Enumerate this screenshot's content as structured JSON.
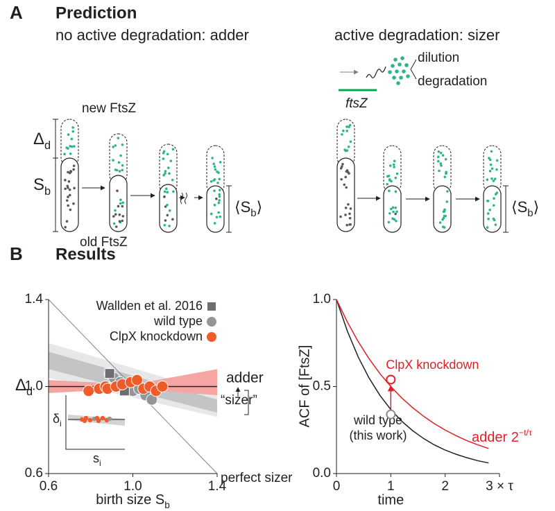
{
  "panel_a": {
    "letter": "A",
    "title": "Prediction",
    "left_heading": "no active degradation: adder",
    "right_heading": "active degradation: sizer",
    "new_label": "new FtsZ",
    "old_label": "old FtsZ",
    "delta_label": {
      "main": "Δ",
      "sub": "d"
    },
    "birth_label": {
      "main": "S",
      "sub": "b"
    },
    "mean_left": {
      "open": "⟨S",
      "sub": "b",
      "close": "⟩"
    },
    "mean_right": {
      "open": "⟨S",
      "sub": "b",
      "close": "⟩"
    },
    "gene": "ftsZ",
    "fates": [
      "dilution",
      "degradation"
    ]
  },
  "panel_b": {
    "letter": "B",
    "title": "Results"
  },
  "chart_data": [
    {
      "type": "scatter",
      "ylabel": {
        "main": "Δ",
        "sub": "d"
      },
      "xlabel": {
        "main": "birth size S",
        "sub": "b"
      },
      "xlim": [
        0.6,
        1.4
      ],
      "ylim": [
        0.6,
        1.4
      ],
      "xticks": [
        0.6,
        {
          "value": 1,
          "label": "1.0"
        },
        1.4
      ],
      "yticks": [
        0.6,
        {
          "value": 1,
          "label": "1.0"
        },
        1.4
      ],
      "legend": "top-right",
      "bands": [
        {
          "color": "#e6e7e8",
          "x": [
            0.6,
            1.4
          ],
          "lower": [
            1.04,
            0.86
          ],
          "upper": [
            1.2,
            0.97
          ]
        },
        {
          "color": "#c2c4c6",
          "x": [
            0.6,
            1.4
          ],
          "lower": [
            1.08,
            0.88
          ],
          "upper": [
            1.16,
            0.94
          ]
        },
        {
          "color": "#f5a6a3",
          "x": [
            0.6,
            1.0,
            1.4
          ],
          "lower": [
            0.97,
            0.99,
            0.96
          ],
          "upper": [
            1.03,
            1.01,
            1.08
          ]
        }
      ],
      "reference_lines": [
        {
          "label": "perfect sizer",
          "color": "#808285",
          "x": [
            0.6,
            1.4
          ],
          "y": [
            1.4,
            0.6
          ]
        },
        {
          "label": "adder",
          "color": "#231f20",
          "x": [
            0.6,
            1.4
          ],
          "y": [
            1,
            1
          ]
        }
      ],
      "series": [
        {
          "name": "Wallden et al. 2016",
          "color": "#6d6e71",
          "marker": "square",
          "x": [
            0.89,
            0.96
          ],
          "values": [
            1.06,
            0.98
          ]
        },
        {
          "name": "wild type",
          "color": "#939598",
          "marker": "circle",
          "x": [
            0.89,
            0.91,
            0.94,
            0.97,
            1.0,
            1.03,
            1.06,
            1.09
          ],
          "values": [
            1.06,
            1.04,
            1.02,
            1.0,
            0.98,
            0.99,
            0.96,
            0.94
          ]
        },
        {
          "name": "ClpX knockdown",
          "color": "#f15a29",
          "marker": "circle",
          "x": [
            0.79,
            0.84,
            0.87,
            0.88,
            0.92,
            0.95,
            0.99,
            1.02,
            1.05,
            1.08,
            1.11,
            1.14
          ],
          "values": [
            0.98,
            0.99,
            1.0,
            0.99,
            1.0,
            1.01,
            1.02,
            1.03,
            0.99,
            1.0,
            0.98,
            1.0
          ]
        }
      ],
      "annotation": "“sizer”",
      "inset": {
        "ylabel": {
          "main": "δ",
          "sub": "i"
        },
        "xlabel": {
          "main": "s",
          "sub": "i"
        }
      }
    },
    {
      "type": "line",
      "ylabel": "ACF of [FtsZ]",
      "xlabel": "time",
      "xlim": [
        0,
        3
      ],
      "ylim": [
        0,
        1
      ],
      "xticks": [
        0,
        1,
        2,
        {
          "value": 3,
          "label": "3 × τ"
        }
      ],
      "yticks": [
        {
          "value": 0,
          "label": "0.0"
        },
        0.5,
        {
          "value": 1,
          "label": "1.0"
        }
      ],
      "x": [
        0,
        0.2,
        0.4,
        0.6,
        0.8,
        1,
        1.2,
        1.4,
        1.6,
        1.8,
        2,
        2.2,
        2.4,
        2.6,
        2.8
      ],
      "series": [
        {
          "color": "#231f20",
          "label": [
            "wild type",
            "(this work)"
          ],
          "values": [
            1,
            0.819,
            0.67,
            0.549,
            0.449,
            0.368,
            0.301,
            0.247,
            0.202,
            0.165,
            0.135,
            0.111,
            0.091,
            0.074,
            0.061
          ]
        },
        {
          "color": "#e31e24",
          "label": {
            "main": "adder 2",
            "sup": "−t/τ"
          },
          "values": [
            1,
            0.871,
            0.758,
            0.66,
            0.574,
            0.5,
            0.435,
            0.379,
            0.33,
            0.287,
            0.25,
            0.218,
            0.189,
            0.165,
            0.144
          ]
        }
      ],
      "points": [
        {
          "x": 1,
          "y": 0.54,
          "color": "#e31e24",
          "label": "ClpX knockdown"
        },
        {
          "x": 1,
          "y": 0.34,
          "color": "#8c8c8c"
        }
      ]
    }
  ]
}
